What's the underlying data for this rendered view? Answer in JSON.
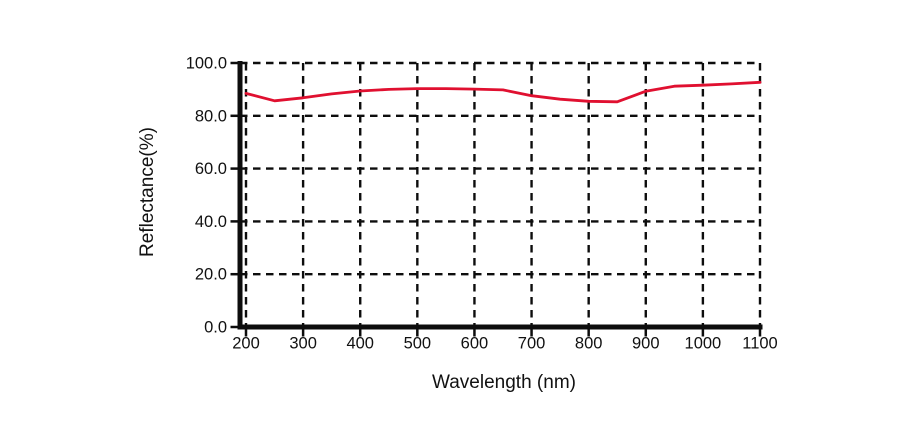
{
  "chart_data": {
    "type": "line",
    "title": "",
    "xlabel": "Wavelength (nm)",
    "ylabel": "Reflectance(%)",
    "xlim": [
      200,
      1100
    ],
    "ylim": [
      0,
      100
    ],
    "x_ticks": [
      200,
      300,
      400,
      500,
      600,
      700,
      800,
      900,
      1000,
      1100
    ],
    "y_ticks": [
      0,
      20,
      40,
      60,
      80,
      100
    ],
    "y_tick_labels": [
      "0.0",
      "20.0",
      "40.0",
      "60.0",
      "80.0",
      "100.0"
    ],
    "grid": "dashed",
    "legend_position": "none",
    "series": [
      {
        "name": "reflectance",
        "color": "#e01030",
        "x": [
          200,
          250,
          300,
          350,
          400,
          450,
          500,
          550,
          600,
          650,
          700,
          750,
          800,
          850,
          900,
          950,
          1000,
          1050,
          1100
        ],
        "y": [
          88.5,
          85.7,
          86.8,
          88.3,
          89.4,
          90.0,
          90.3,
          90.3,
          90.1,
          89.8,
          87.6,
          86.3,
          85.5,
          85.3,
          89.3,
          91.2,
          91.6,
          92.1,
          92.7
        ]
      }
    ]
  },
  "colors": {
    "curve": "#e01030",
    "axis": "#0d0d0d",
    "grid": "#0d0d0d",
    "background": "#ffffff"
  }
}
